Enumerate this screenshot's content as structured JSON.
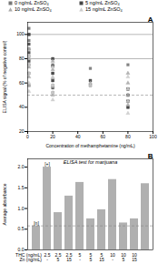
{
  "chart_data": [
    {
      "type": "scatter",
      "title": "A",
      "xlabel": "Concentration of methamphetamine (ng/mL)",
      "ylabel": "ELISA signal (% of negative control)",
      "xlim": [
        0,
        100
      ],
      "ylim": [
        20,
        110
      ],
      "xticks": [
        0,
        20,
        40,
        60,
        80,
        100
      ],
      "yticks": [
        20,
        40,
        60,
        80,
        100
      ],
      "grid": false,
      "legend": "top",
      "hlines": [
        {
          "y": 80,
          "line_style": "solid",
          "color": "#888888"
        },
        {
          "y": 100,
          "line_style": "solid",
          "color": "#888888"
        },
        {
          "y": 50,
          "line_style": "dashed",
          "color": "#888888"
        }
      ],
      "series": [
        {
          "name": "0 ng/mL ZnSO₄",
          "color": "#777777",
          "marker": "square",
          "x": [
            1,
            1,
            1,
            1,
            1,
            1,
            1,
            1,
            20,
            20,
            20,
            20,
            20,
            20,
            50,
            50,
            80,
            80,
            80,
            80,
            80
          ],
          "y": [
            105,
            100,
            95,
            88,
            82,
            75,
            68,
            58,
            80,
            75,
            68,
            62,
            58,
            52,
            72,
            62,
            75,
            55,
            50,
            45,
            40
          ]
        },
        {
          "name": "5 ng/mL ZnSO₄",
          "color": "#444444",
          "marker": "square",
          "x": [
            1,
            1,
            1,
            1,
            20,
            20,
            20,
            20,
            20,
            50,
            50,
            80,
            80,
            80,
            80
          ],
          "y": [
            100,
            92,
            85,
            78,
            80,
            74,
            68,
            62,
            56,
            62,
            58,
            55,
            50,
            45,
            40
          ]
        },
        {
          "name": "10 ng/mL ZnSO₄",
          "color": "#aaaaaa",
          "marker": "triangle",
          "x": [
            1,
            1,
            1,
            1,
            1,
            20,
            20,
            20,
            20,
            20,
            50,
            80,
            80,
            80,
            80
          ],
          "y": [
            88,
            80,
            73,
            65,
            58,
            78,
            71,
            64,
            57,
            50,
            60,
            68,
            60,
            50,
            42
          ]
        },
        {
          "name": "15 ng/mL ZnSO₄",
          "color": "#cccccc",
          "marker": "triangle",
          "x": [
            1,
            1,
            1,
            1,
            1,
            20,
            20,
            20,
            20,
            20,
            50,
            80,
            80,
            80,
            80
          ],
          "y": [
            82,
            75,
            68,
            60,
            53,
            73,
            65,
            58,
            52,
            46,
            58,
            65,
            55,
            45,
            35
          ]
        }
      ]
    },
    {
      "type": "bar",
      "title": "B",
      "subtitle": "ELISA test for marijuana",
      "ylabel": "Average absorbance",
      "categories": [
        [
          "THC (ng/mL)",
          "Zn (ng/mL)"
        ],
        [
          "2.5",
          "-"
        ],
        [
          "2.5",
          "5"
        ],
        [
          "2.5",
          "15"
        ],
        [
          "5",
          "-"
        ],
        [
          "5",
          "5"
        ],
        [
          "5",
          "15"
        ],
        [
          "10",
          "-"
        ],
        [
          "10",
          "5"
        ],
        [
          "10",
          "15"
        ],
        null
      ],
      "values": [
        0.58,
        2.0,
        0.9,
        1.3,
        1.63,
        0.75,
        0.97,
        1.7,
        0.65,
        0.75,
        1.6
      ],
      "color": "#b0b0b0",
      "ylim": [
        0,
        2.2
      ],
      "yticks": [
        {
          "value": 0,
          "label": "0.0"
        },
        0.5,
        {
          "value": 1,
          "label": "1.0"
        },
        1.5,
        {
          "value": 2,
          "label": "2.0"
        }
      ],
      "grid": false,
      "hlines": [
        {
          "y": 0.58,
          "line_style": "dashed",
          "color": "#888888"
        }
      ],
      "annotations": [
        {
          "text": "[+]",
          "category_index": 1,
          "y": 2.03
        },
        {
          "text": "[n]",
          "category_index": 0,
          "y": 0.6
        }
      ]
    }
  ]
}
